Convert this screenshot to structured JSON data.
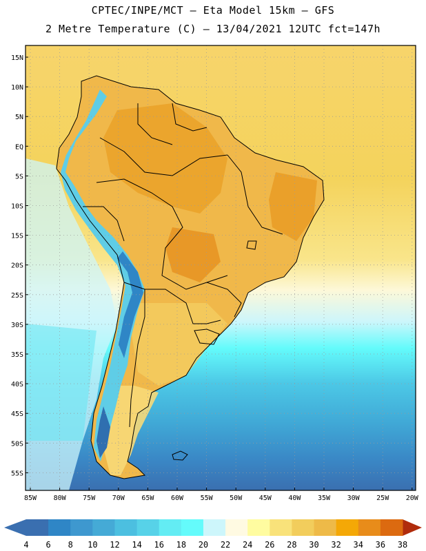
{
  "header": {
    "line1": "CPTEC/INPE/MCT –  Eta Model 15km – GFS",
    "line2": "2 Metre Temperature (C) – 13/04/2021 12UTC fct=147h"
  },
  "map": {
    "lat_labels": [
      "15N",
      "10N",
      "5N",
      "EQ",
      "5S",
      "10S",
      "15S",
      "20S",
      "25S",
      "30S",
      "35S",
      "40S",
      "45S",
      "50S",
      "55S"
    ],
    "lon_labels": [
      "85W",
      "80W",
      "75W",
      "70W",
      "65W",
      "60W",
      "55W",
      "50W",
      "45W",
      "40W",
      "35W",
      "30W",
      "25W",
      "20W"
    ]
  },
  "colorbar": {
    "ticks": [
      "4",
      "6",
      "8",
      "10",
      "12",
      "14",
      "16",
      "18",
      "20",
      "22",
      "24",
      "26",
      "28",
      "30",
      "32",
      "34",
      "36",
      "38"
    ],
    "colors": [
      "#3a6fb0",
      "#2f86c6",
      "#3e98cf",
      "#45aad6",
      "#4cbfe0",
      "#57d2e8",
      "#63ecf3",
      "#64fbfb",
      "#cdf6fb",
      "#fffae2",
      "#fffca0",
      "#f9e27a",
      "#f2cd5c",
      "#eeba48",
      "#f4a806",
      "#e88c1a",
      "#dc6a10",
      "#c6430a",
      "#b02c0c",
      "#3a6fb0"
    ],
    "color_note": "swatches from 4-6 up to 36-38; arrows: low #3a6fb0, high #b02c0c"
  }
}
